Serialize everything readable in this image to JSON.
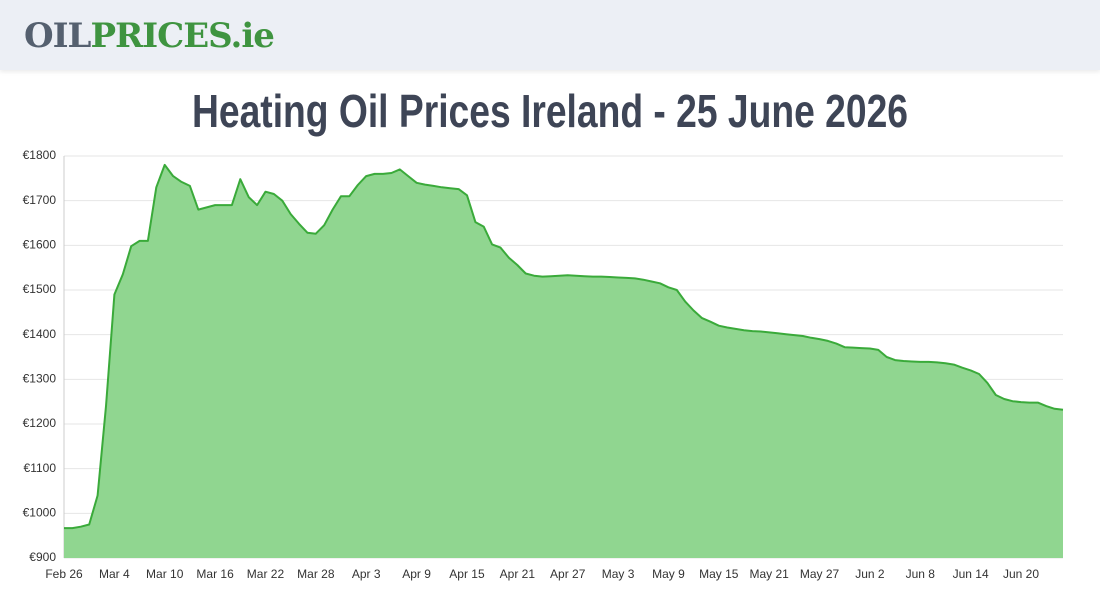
{
  "header": {
    "logo": [
      "OIL",
      "PRICES.ie"
    ]
  },
  "chart_data": {
    "type": "area",
    "title": "Heating Oil Prices Ireland - 25 June 2026",
    "color": "#3aaa3a",
    "fill_color": "#90d690",
    "grid": true,
    "categories": [
      "Feb 26",
      null,
      null,
      null,
      null,
      null,
      "Mar 4",
      null,
      null,
      null,
      null,
      null,
      "Mar 10",
      null,
      null,
      null,
      null,
      null,
      "Mar 16",
      null,
      null,
      null,
      null,
      null,
      "Mar 22",
      null,
      null,
      null,
      null,
      null,
      "Mar 28",
      null,
      null,
      null,
      null,
      null,
      "Apr 3",
      null,
      null,
      null,
      null,
      null,
      "Apr 9",
      null,
      null,
      null,
      null,
      null,
      "Apr 15",
      null,
      null,
      null,
      null,
      null,
      "Apr 21",
      null,
      null,
      null,
      null,
      null,
      "Apr 27",
      null,
      null,
      null,
      null,
      null,
      "May 3",
      null,
      null,
      null,
      null,
      null,
      "May 9",
      null,
      null,
      null,
      null,
      null,
      "May 15",
      null,
      null,
      null,
      null,
      null,
      "May 21",
      null,
      null,
      null,
      null,
      null,
      "May 27",
      null,
      null,
      null,
      null,
      null,
      "Jun 2",
      null,
      null,
      null,
      null,
      null,
      "Jun 8",
      null,
      null,
      null,
      null,
      null,
      "Jun 14",
      null,
      null,
      null,
      null,
      null,
      "Jun 20",
      null,
      null,
      null,
      null,
      null
    ],
    "values": [
      967,
      967,
      970,
      975,
      1040,
      1240,
      1490,
      1535,
      1598,
      1610,
      1610,
      1730,
      1780,
      1755,
      1742,
      1733,
      1680,
      1685,
      1690,
      1690,
      1690,
      1748,
      1708,
      1690,
      1720,
      1715,
      1700,
      1670,
      1648,
      1628,
      1626,
      1645,
      1680,
      1710,
      1710,
      1735,
      1755,
      1760,
      1760,
      1762,
      1770,
      1755,
      1740,
      1736,
      1733,
      1730,
      1728,
      1726,
      1712,
      1652,
      1642,
      1602,
      1595,
      1572,
      1556,
      1537,
      1532,
      1530,
      1531,
      1532,
      1533,
      1532,
      1531,
      1530,
      1530,
      1529,
      1528,
      1527,
      1526,
      1523,
      1519,
      1515,
      1506,
      1500,
      1474,
      1454,
      1437,
      1429,
      1420,
      1416,
      1413,
      1410,
      1408,
      1407,
      1405,
      1403,
      1401,
      1399,
      1397,
      1393,
      1390,
      1386,
      1380,
      1372,
      1371,
      1370,
      1369,
      1366,
      1350,
      1343,
      1341,
      1340,
      1339,
      1339,
      1338,
      1336,
      1333,
      1326,
      1320,
      1312,
      1292,
      1265,
      1256,
      1251,
      1249,
      1248,
      1248,
      1240,
      1234,
      1232
    ],
    "ylim": [
      900,
      1800
    ],
    "yticks": [
      {
        "value": 900,
        "label": "€900"
      },
      {
        "value": 1000,
        "label": "€1000"
      },
      {
        "value": 1100,
        "label": "€1100"
      },
      {
        "value": 1200,
        "label": "€1200"
      },
      {
        "value": 1300,
        "label": "€1300"
      },
      {
        "value": 1400,
        "label": "€1400"
      },
      {
        "value": 1500,
        "label": "€1500"
      },
      {
        "value": 1600,
        "label": "€1600"
      },
      {
        "value": 1700,
        "label": "€1700"
      },
      {
        "value": 1800,
        "label": "€1800"
      }
    ]
  }
}
